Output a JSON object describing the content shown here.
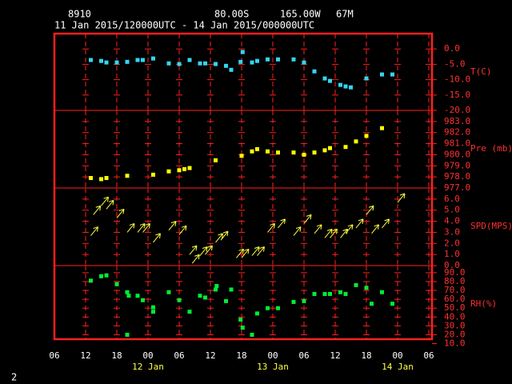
{
  "header": {
    "station": "8910",
    "lat": "80.00S",
    "lon": "165.00W",
    "elev": "67M",
    "period": "11 Jan 2015/120000UTC - 14 Jan 2015/000000UTC"
  },
  "page_number": "2",
  "chart_data": [
    {
      "type": "scatter",
      "ylabel": "T(C)",
      "color": "#33d6f0",
      "xlim": [
        6,
        78
      ],
      "ylim": [
        -20,
        5
      ],
      "yticks": [
        {
          "value": 0,
          "label": "0.0"
        },
        {
          "value": -5,
          "label": "-5.0"
        },
        {
          "value": -10,
          "label": "-10.0"
        },
        {
          "value": -15,
          "label": "-15.0"
        },
        {
          "value": -20,
          "label": "-20.0"
        }
      ],
      "x": [
        13,
        15,
        16,
        18,
        20,
        22,
        23,
        25,
        28,
        30,
        32,
        34,
        35,
        37,
        39,
        40,
        41.8,
        42.2,
        44,
        45,
        47,
        49,
        52,
        54,
        56,
        58,
        59,
        61,
        62,
        63,
        66,
        69,
        71
      ],
      "values": [
        -3.6,
        -3.9,
        -4.4,
        -4.4,
        -4.2,
        -3.6,
        -3.6,
        -3.1,
        -4.7,
        -4.9,
        -3.6,
        -4.7,
        -4.7,
        -4.9,
        -5.5,
        -6.8,
        -4.2,
        -1.0,
        -4.4,
        -3.9,
        -3.4,
        -3.4,
        -3.4,
        -4.4,
        -7.3,
        -9.6,
        -10.4,
        -11.7,
        -12.2,
        -12.5,
        -9.6,
        -8.3,
        -8.3
      ]
    },
    {
      "type": "scatter",
      "ylabel": "Pre (mb)",
      "color": "#ffff00",
      "xlim": [
        6,
        78
      ],
      "ylim": [
        977,
        984
      ],
      "yticks": [
        {
          "value": 983,
          "label": "983.0"
        },
        {
          "value": 982,
          "label": "982.0"
        },
        {
          "value": 981,
          "label": "981.0"
        },
        {
          "value": 980,
          "label": "980.0"
        },
        {
          "value": 979,
          "label": "979.0"
        },
        {
          "value": 978,
          "label": "978.0"
        },
        {
          "value": 977,
          "label": "977.0"
        }
      ],
      "x": [
        13,
        15,
        16,
        20,
        25,
        28,
        30,
        31,
        32,
        37,
        42,
        44,
        45,
        47,
        49,
        52,
        54,
        56,
        58,
        59,
        62,
        64,
        66,
        69
      ],
      "values": [
        977.9,
        977.8,
        977.9,
        978.1,
        978.2,
        978.5,
        978.6,
        978.7,
        978.8,
        979.5,
        979.9,
        980.3,
        980.5,
        980.3,
        980.2,
        980.2,
        980.0,
        980.2,
        980.4,
        980.6,
        980.7,
        981.2,
        981.7,
        982.4
      ]
    },
    {
      "type": "vector",
      "ylabel": "SPD(MPS)",
      "color": "#ffff40",
      "xlim": [
        6,
        78
      ],
      "ylim": [
        0,
        7
      ],
      "yticks": [
        {
          "value": 6,
          "label": "6.0"
        },
        {
          "value": 5,
          "label": "5.0"
        },
        {
          "value": 4,
          "label": "4.0"
        },
        {
          "value": 3,
          "label": "3.0"
        },
        {
          "value": 2,
          "label": "2.0"
        },
        {
          "value": 1,
          "label": "1.0"
        },
        {
          "value": 0,
          "label": "0.0"
        }
      ],
      "x": [
        13,
        13.5,
        15,
        16,
        18,
        20,
        22,
        23,
        25,
        28,
        30,
        32,
        32.5,
        34,
        35,
        37,
        38,
        41,
        42,
        44,
        45,
        47,
        49,
        52,
        54,
        56,
        58,
        59,
        61,
        62,
        64,
        66,
        67,
        69,
        72
      ],
      "values": [
        2.7,
        4.6,
        5.4,
        5.1,
        4.3,
        3.0,
        3.0,
        3.0,
        2.1,
        3.2,
        2.8,
        1.0,
        0.2,
        0.9,
        1.0,
        2.1,
        2.3,
        0.7,
        0.7,
        0.9,
        0.9,
        3.0,
        3.4,
        2.7,
        3.8,
        2.9,
        2.5,
        2.5,
        2.5,
        2.9,
        3.4,
        4.6,
        2.9,
        3.4,
        5.7
      ]
    },
    {
      "type": "scatter",
      "ylabel": "RH(%)",
      "color": "#00ee33",
      "xlim": [
        6,
        78
      ],
      "ylim": [
        15,
        98
      ],
      "yticks": [
        {
          "value": 90,
          "label": "90.0"
        },
        {
          "value": 80,
          "label": "80.0"
        },
        {
          "value": 70,
          "label": "70.0"
        },
        {
          "value": 60,
          "label": "60.0"
        },
        {
          "value": 50,
          "label": "50.0"
        },
        {
          "value": 40,
          "label": "40.0"
        },
        {
          "value": 30,
          "label": "30.0"
        },
        {
          "value": 20,
          "label": "20.0"
        },
        {
          "value": 10,
          "label": "10.0"
        }
      ],
      "xticks": [
        {
          "value": 6,
          "label": "06"
        },
        {
          "value": 12,
          "label": "12"
        },
        {
          "value": 18,
          "label": "18"
        },
        {
          "value": 24,
          "label": "00"
        },
        {
          "value": 30,
          "label": "06"
        },
        {
          "value": 36,
          "label": "12"
        },
        {
          "value": 42,
          "label": "18"
        },
        {
          "value": 48,
          "label": "00"
        },
        {
          "value": 54,
          "label": "06"
        },
        {
          "value": 60,
          "label": "12"
        },
        {
          "value": 66,
          "label": "18"
        },
        {
          "value": 72,
          "label": "00"
        },
        {
          "value": 78,
          "label": "06"
        }
      ],
      "date_ticks": [
        {
          "value": 24,
          "label": "12 Jan"
        },
        {
          "value": 48,
          "label": "13 Jan"
        },
        {
          "value": 72,
          "label": "14 Jan"
        }
      ],
      "x": [
        13,
        15,
        16,
        18,
        20,
        20.3,
        20,
        22,
        23,
        25,
        25,
        28,
        30,
        32,
        34,
        35,
        37,
        37.2,
        39,
        40,
        41.8,
        42.2,
        44,
        45,
        47,
        49,
        52,
        54,
        56,
        58,
        59,
        61,
        62,
        64,
        66,
        67,
        69,
        71
      ],
      "values": [
        81,
        86,
        87,
        77,
        68,
        64,
        20,
        64,
        59,
        51,
        46,
        68,
        59,
        46,
        64,
        62,
        71,
        75,
        58,
        71,
        37,
        28,
        20,
        44,
        50,
        50,
        57,
        58,
        66,
        66,
        66,
        68,
        66,
        76,
        73,
        55,
        68,
        55
      ]
    }
  ]
}
